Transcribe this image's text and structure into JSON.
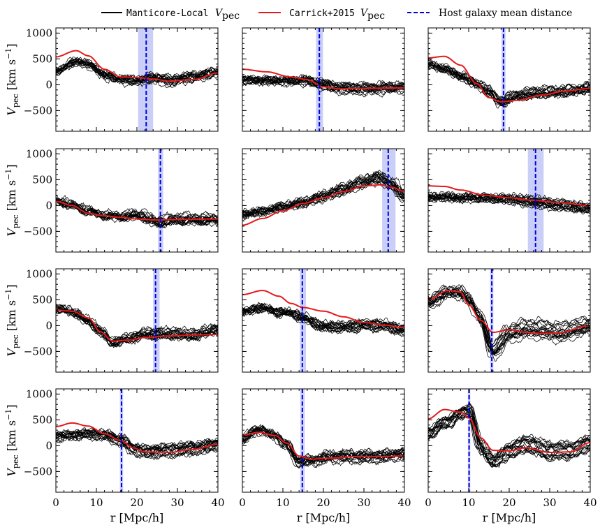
{
  "legend": {
    "items": [
      {
        "label_mono": "Manticore-Local",
        "label_math": "V",
        "label_sub": "pec",
        "color": "#000000",
        "style": "solid"
      },
      {
        "label_mono": "Carrick+2015",
        "label_math": "V",
        "label_sub": "pec",
        "color": "#e41a1c",
        "style": "solid"
      },
      {
        "label_text": "Host galaxy mean distance",
        "color": "#0000dd",
        "style": "dashed"
      }
    ]
  },
  "axes": {
    "xlabel": "r [Mpc/h]",
    "ylabel_main": "V",
    "ylabel_sub": "pec",
    "ylabel_unit": "[km s",
    "ylabel_exp": "−1",
    "ylabel_close": "]"
  },
  "chart_data": {
    "type": "line",
    "grid": "4x3 small multiples, shared axes",
    "xlim": [
      0,
      40
    ],
    "ylim": [
      -900,
      1100
    ],
    "xticks": [
      0,
      10,
      20,
      30,
      40
    ],
    "yticks": [
      -500,
      0,
      500,
      1000
    ],
    "ensemble_size": 20,
    "colors": {
      "ensemble": "#000000",
      "carrick": "#e41a1c",
      "host": "#0000dd",
      "band": "#b8bff5"
    },
    "panels": [
      {
        "host_r": 22.3,
        "band": [
          20.3,
          24.0
        ],
        "carrick": [
          [
            0,
            540
          ],
          [
            5,
            660
          ],
          [
            8,
            560
          ],
          [
            12,
            300
          ],
          [
            16,
            150
          ],
          [
            20,
            140
          ],
          [
            24,
            110
          ],
          [
            28,
            70
          ],
          [
            34,
            100
          ],
          [
            40,
            230
          ]
        ],
        "ensemble": [
          [
            0,
            250
          ],
          [
            5,
            450
          ],
          [
            8,
            380
          ],
          [
            12,
            170
          ],
          [
            16,
            90
          ],
          [
            20,
            60
          ],
          [
            24,
            120
          ],
          [
            28,
            60
          ],
          [
            34,
            140
          ],
          [
            40,
            230
          ]
        ],
        "spread": 110
      },
      {
        "host_r": 19.0,
        "band": [
          18.2,
          19.9
        ],
        "carrick": [
          [
            0,
            300
          ],
          [
            6,
            250
          ],
          [
            12,
            150
          ],
          [
            16,
            100
          ],
          [
            20,
            -40
          ],
          [
            24,
            -80
          ],
          [
            30,
            -70
          ],
          [
            40,
            -60
          ]
        ],
        "ensemble": [
          [
            0,
            90
          ],
          [
            6,
            80
          ],
          [
            12,
            70
          ],
          [
            16,
            80
          ],
          [
            20,
            0
          ],
          [
            24,
            -70
          ],
          [
            30,
            -80
          ],
          [
            40,
            -60
          ]
        ],
        "spread": 100
      },
      {
        "host_r": 18.6,
        "band": [
          18.1,
          19.1
        ],
        "carrick": [
          [
            0,
            520
          ],
          [
            4,
            550
          ],
          [
            8,
            380
          ],
          [
            12,
            20
          ],
          [
            15,
            -250
          ],
          [
            18,
            -330
          ],
          [
            22,
            -300
          ],
          [
            28,
            -200
          ],
          [
            34,
            -120
          ],
          [
            40,
            -70
          ]
        ],
        "ensemble": [
          [
            0,
            400
          ],
          [
            4,
            320
          ],
          [
            8,
            180
          ],
          [
            12,
            30
          ],
          [
            15,
            -120
          ],
          [
            18,
            -330
          ],
          [
            22,
            -200
          ],
          [
            28,
            -140
          ],
          [
            34,
            -120
          ],
          [
            40,
            -60
          ]
        ],
        "spread": 100
      },
      {
        "host_r": 25.8,
        "band": [
          25.2,
          26.5
        ],
        "carrick": [
          [
            0,
            80
          ],
          [
            4,
            0
          ],
          [
            8,
            -150
          ],
          [
            12,
            -200
          ],
          [
            16,
            -230
          ],
          [
            20,
            -260
          ],
          [
            25,
            -280
          ],
          [
            30,
            -270
          ],
          [
            40,
            -260
          ]
        ],
        "ensemble": [
          [
            0,
            110
          ],
          [
            4,
            20
          ],
          [
            8,
            -100
          ],
          [
            12,
            -180
          ],
          [
            16,
            -200
          ],
          [
            20,
            -160
          ],
          [
            25,
            -300
          ],
          [
            30,
            -250
          ],
          [
            40,
            -260
          ]
        ],
        "spread": 90
      },
      {
        "host_r": 36.0,
        "band": [
          34.5,
          37.8
        ],
        "carrick": [
          [
            0,
            -380
          ],
          [
            5,
            -250
          ],
          [
            10,
            -100
          ],
          [
            15,
            40
          ],
          [
            20,
            150
          ],
          [
            25,
            270
          ],
          [
            30,
            380
          ],
          [
            34,
            400
          ],
          [
            37,
            350
          ],
          [
            40,
            270
          ]
        ],
        "ensemble": [
          [
            0,
            -180
          ],
          [
            5,
            -120
          ],
          [
            10,
            -30
          ],
          [
            15,
            50
          ],
          [
            20,
            170
          ],
          [
            25,
            310
          ],
          [
            30,
            450
          ],
          [
            34,
            540
          ],
          [
            37,
            400
          ],
          [
            40,
            180
          ]
        ],
        "spread": 110
      },
      {
        "host_r": 26.5,
        "band": [
          24.6,
          28.5
        ],
        "carrick": [
          [
            0,
            380
          ],
          [
            4,
            370
          ],
          [
            8,
            300
          ],
          [
            14,
            200
          ],
          [
            20,
            150
          ],
          [
            26,
            100
          ],
          [
            32,
            60
          ],
          [
            40,
            0
          ]
        ],
        "ensemble": [
          [
            0,
            160
          ],
          [
            4,
            170
          ],
          [
            8,
            150
          ],
          [
            14,
            150
          ],
          [
            20,
            130
          ],
          [
            26,
            80
          ],
          [
            32,
            20
          ],
          [
            40,
            -50
          ]
        ],
        "spread": 90
      },
      {
        "host_r": 24.6,
        "band": [
          24.0,
          25.6
        ],
        "carrick": [
          [
            0,
            300
          ],
          [
            4,
            280
          ],
          [
            8,
            150
          ],
          [
            11,
            -120
          ],
          [
            14,
            -300
          ],
          [
            18,
            -280
          ],
          [
            22,
            -230
          ],
          [
            28,
            -200
          ],
          [
            34,
            -180
          ],
          [
            40,
            -170
          ]
        ],
        "ensemble": [
          [
            0,
            340
          ],
          [
            4,
            280
          ],
          [
            8,
            100
          ],
          [
            11,
            -100
          ],
          [
            14,
            -320
          ],
          [
            18,
            -240
          ],
          [
            22,
            -150
          ],
          [
            28,
            -150
          ],
          [
            34,
            -170
          ],
          [
            40,
            -60
          ]
        ],
        "spread": 90
      },
      {
        "host_r": 14.8,
        "band": [
          14.2,
          15.7
        ],
        "carrick": [
          [
            0,
            600
          ],
          [
            5,
            680
          ],
          [
            9,
            570
          ],
          [
            12,
            430
          ],
          [
            15,
            350
          ],
          [
            20,
            280
          ],
          [
            25,
            170
          ],
          [
            30,
            60
          ],
          [
            35,
            10
          ],
          [
            40,
            -40
          ]
        ],
        "ensemble": [
          [
            0,
            280
          ],
          [
            5,
            360
          ],
          [
            9,
            270
          ],
          [
            12,
            260
          ],
          [
            15,
            160
          ],
          [
            20,
            0
          ],
          [
            25,
            -10
          ],
          [
            30,
            30
          ],
          [
            35,
            20
          ],
          [
            40,
            -80
          ]
        ],
        "spread": 110
      },
      {
        "host_r": 15.7,
        "band": [
          15.3,
          16.1
        ],
        "carrick": [
          [
            0,
            500
          ],
          [
            5,
            680
          ],
          [
            8,
            650
          ],
          [
            10,
            400
          ],
          [
            13,
            100
          ],
          [
            16,
            -130
          ],
          [
            20,
            -80
          ],
          [
            24,
            -130
          ],
          [
            28,
            -150
          ],
          [
            32,
            -140
          ],
          [
            40,
            0
          ]
        ],
        "ensemble": [
          [
            0,
            450
          ],
          [
            5,
            650
          ],
          [
            8,
            650
          ],
          [
            10,
            520
          ],
          [
            13,
            150
          ],
          [
            16,
            -500
          ],
          [
            20,
            -150
          ],
          [
            24,
            -60
          ],
          [
            28,
            -70
          ],
          [
            32,
            -130
          ],
          [
            40,
            0
          ]
        ],
        "spread": 200
      },
      {
        "host_r": 16.2,
        "band": [
          15.8,
          16.6
        ],
        "carrick": [
          [
            0,
            370
          ],
          [
            4,
            440
          ],
          [
            8,
            380
          ],
          [
            12,
            230
          ],
          [
            16,
            100
          ],
          [
            19,
            -40
          ],
          [
            22,
            -120
          ],
          [
            28,
            -130
          ],
          [
            34,
            -70
          ],
          [
            40,
            30
          ]
        ],
        "ensemble": [
          [
            0,
            180
          ],
          [
            4,
            200
          ],
          [
            8,
            230
          ],
          [
            12,
            200
          ],
          [
            16,
            100
          ],
          [
            19,
            -60
          ],
          [
            22,
            -120
          ],
          [
            28,
            -90
          ],
          [
            34,
            -50
          ],
          [
            40,
            20
          ]
        ],
        "spread": 110
      },
      {
        "host_r": 14.8,
        "band": [
          14.3,
          15.4
        ],
        "carrick": [
          [
            0,
            200
          ],
          [
            4,
            260
          ],
          [
            8,
            200
          ],
          [
            11,
            50
          ],
          [
            14,
            -200
          ],
          [
            17,
            -260
          ],
          [
            22,
            -240
          ],
          [
            28,
            -210
          ],
          [
            34,
            -210
          ],
          [
            40,
            -200
          ]
        ],
        "ensemble": [
          [
            0,
            130
          ],
          [
            4,
            320
          ],
          [
            8,
            210
          ],
          [
            11,
            30
          ],
          [
            14,
            -300
          ],
          [
            17,
            -280
          ],
          [
            22,
            -200
          ],
          [
            28,
            -200
          ],
          [
            34,
            -190
          ],
          [
            40,
            -150
          ]
        ],
        "spread": 120
      },
      {
        "host_r": 10.1,
        "band": [
          9.8,
          10.4
        ],
        "carrick": [
          [
            0,
            520
          ],
          [
            4,
            700
          ],
          [
            8,
            650
          ],
          [
            10,
            540
          ],
          [
            13,
            150
          ],
          [
            16,
            -90
          ],
          [
            20,
            -100
          ],
          [
            24,
            -40
          ],
          [
            30,
            -130
          ],
          [
            35,
            -120
          ],
          [
            40,
            60
          ]
        ],
        "ensemble": [
          [
            0,
            250
          ],
          [
            4,
            450
          ],
          [
            8,
            620
          ],
          [
            10,
            700
          ],
          [
            13,
            -50
          ],
          [
            16,
            -300
          ],
          [
            20,
            -80
          ],
          [
            24,
            40
          ],
          [
            30,
            -100
          ],
          [
            35,
            -80
          ],
          [
            40,
            60
          ]
        ],
        "spread": 170
      }
    ]
  }
}
